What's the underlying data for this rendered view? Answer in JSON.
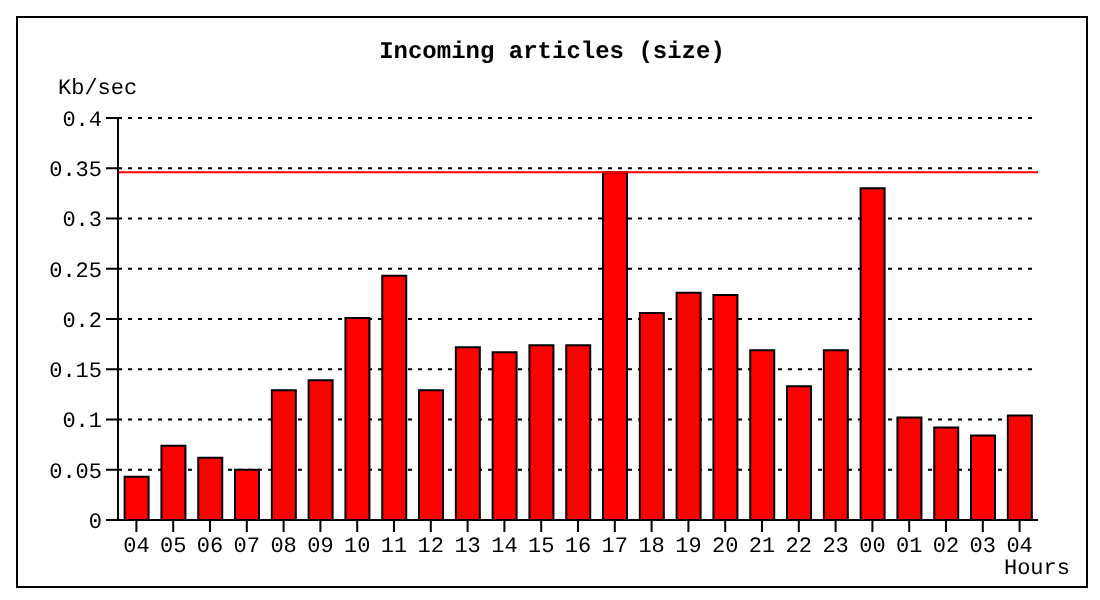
{
  "chart_data": {
    "type": "bar",
    "title": "Incoming articles (size)",
    "ylabel": "Kb/sec",
    "xlabel": "Hours",
    "categories": [
      "04",
      "05",
      "06",
      "07",
      "08",
      "09",
      "10",
      "11",
      "12",
      "13",
      "14",
      "15",
      "16",
      "17",
      "18",
      "19",
      "20",
      "21",
      "22",
      "23",
      "00",
      "01",
      "02",
      "03",
      "04"
    ],
    "values": [
      0.043,
      0.074,
      0.062,
      0.05,
      0.129,
      0.139,
      0.201,
      0.243,
      0.129,
      0.172,
      0.167,
      0.174,
      0.174,
      0.346,
      0.206,
      0.226,
      0.224,
      0.169,
      0.133,
      0.169,
      0.33,
      0.102,
      0.092,
      0.084,
      0.104
    ],
    "color": "#ff0000",
    "ylim": [
      0,
      0.4
    ],
    "yticks": [
      0,
      0.05,
      0.1,
      0.15,
      0.2,
      0.25,
      0.3,
      0.35,
      0.4
    ],
    "grid": "y",
    "ref_lines": [
      {
        "axis": "y",
        "value": 0.346,
        "color": "#ff0000"
      }
    ]
  }
}
